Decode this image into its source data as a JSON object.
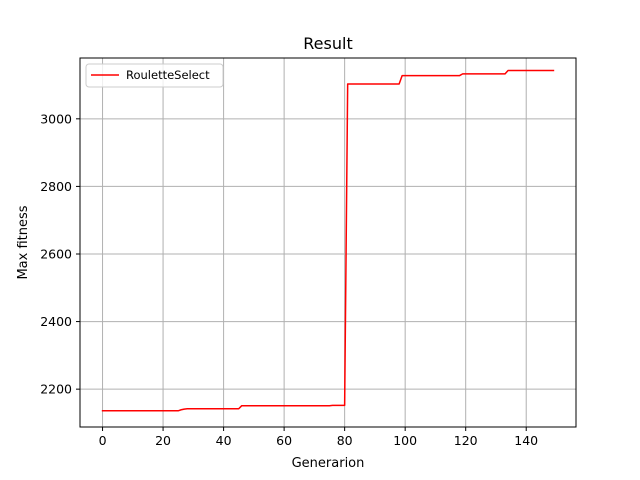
{
  "chart_data": {
    "type": "line",
    "title": "Result",
    "xlabel": "Generarion",
    "ylabel": "Max fitness",
    "xlim": [
      -7.45,
      156.45
    ],
    "ylim": [
      2088,
      3180
    ],
    "xticks": [
      0,
      20,
      40,
      60,
      80,
      100,
      120,
      140
    ],
    "yticks": [
      2200,
      2400,
      2600,
      2800,
      3000
    ],
    "grid": true,
    "legend_position": "top-left",
    "series": [
      {
        "name": "RouletteSelect",
        "color": "#ff0000",
        "x": [
          0,
          25,
          26,
          27,
          28,
          45,
          46,
          75,
          76,
          80,
          81,
          98,
          99,
          118,
          119,
          133,
          134,
          149
        ],
        "y": [
          2136,
          2136,
          2139,
          2141,
          2142,
          2142,
          2151,
          2151,
          2152,
          2152,
          3103,
          3103,
          3128,
          3128,
          3133,
          3133,
          3143,
          3143
        ]
      }
    ]
  }
}
